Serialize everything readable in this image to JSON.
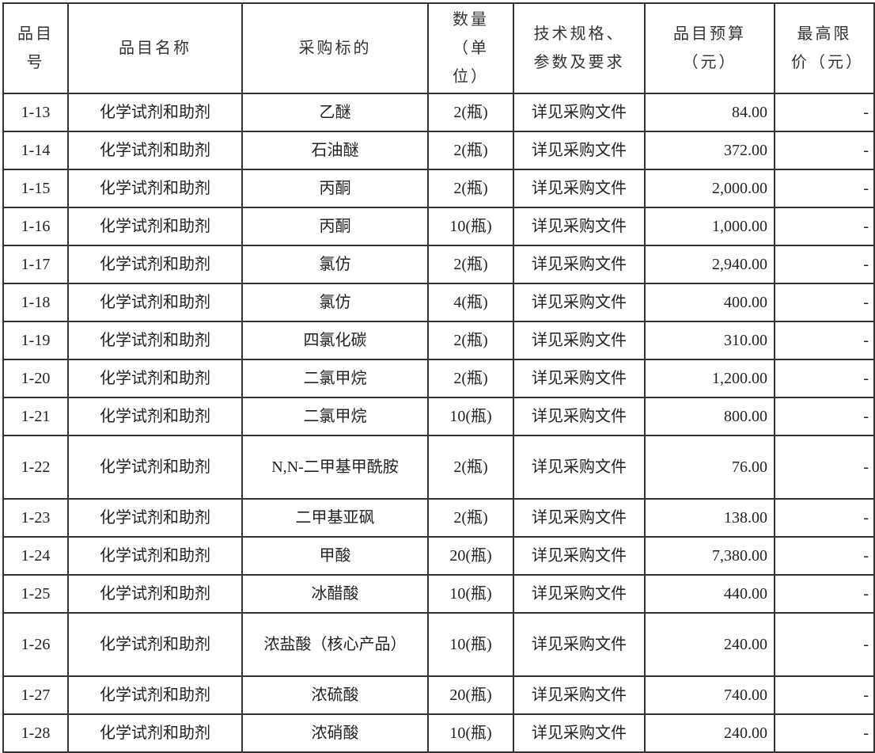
{
  "headers": [
    "品目号",
    "品目名称",
    "采购标的",
    "数量（单位）",
    "技术规格、参数及要求",
    "品目预算（元）",
    "最高限价（元）"
  ],
  "rows": [
    [
      "1-13",
      "化学试剂和助剂",
      "乙醚",
      "2(瓶)",
      "详见采购文件",
      "84.00",
      "-"
    ],
    [
      "1-14",
      "化学试剂和助剂",
      "石油醚",
      "2(瓶)",
      "详见采购文件",
      "372.00",
      "-"
    ],
    [
      "1-15",
      "化学试剂和助剂",
      "丙酮",
      "2(瓶)",
      "详见采购文件",
      "2,000.00",
      "-"
    ],
    [
      "1-16",
      "化学试剂和助剂",
      "丙酮",
      "10(瓶)",
      "详见采购文件",
      "1,000.00",
      "-"
    ],
    [
      "1-17",
      "化学试剂和助剂",
      "氯仿",
      "2(瓶)",
      "详见采购文件",
      "2,940.00",
      "-"
    ],
    [
      "1-18",
      "化学试剂和助剂",
      "氯仿",
      "4(瓶)",
      "详见采购文件",
      "400.00",
      "-"
    ],
    [
      "1-19",
      "化学试剂和助剂",
      "四氯化碳",
      "2(瓶)",
      "详见采购文件",
      "310.00",
      "-"
    ],
    [
      "1-20",
      "化学试剂和助剂",
      "二氯甲烷",
      "2(瓶)",
      "详见采购文件",
      "1,200.00",
      "-"
    ],
    [
      "1-21",
      "化学试剂和助剂",
      "二氯甲烷",
      "10(瓶)",
      "详见采购文件",
      "800.00",
      "-"
    ],
    [
      "1-22",
      "化学试剂和助剂",
      "N,N-二甲基甲酰胺",
      "2(瓶)",
      "详见采购文件",
      "76.00",
      "-"
    ],
    [
      "1-23",
      "化学试剂和助剂",
      "二甲基亚砜",
      "2(瓶)",
      "详见采购文件",
      "138.00",
      "-"
    ],
    [
      "1-24",
      "化学试剂和助剂",
      "甲酸",
      "20(瓶)",
      "详见采购文件",
      "7,380.00",
      "-"
    ],
    [
      "1-25",
      "化学试剂和助剂",
      "冰醋酸",
      "10(瓶)",
      "详见采购文件",
      "440.00",
      "-"
    ],
    [
      "1-26",
      "化学试剂和助剂",
      "浓盐酸（核心产品）",
      "10(瓶)",
      "详见采购文件",
      "240.00",
      "-"
    ],
    [
      "1-27",
      "化学试剂和助剂",
      "浓硫酸",
      "20(瓶)",
      "详见采购文件",
      "740.00",
      "-"
    ],
    [
      "1-28",
      "化学试剂和助剂",
      "浓硝酸",
      "10(瓶)",
      "详见采购文件",
      "240.00",
      "-"
    ]
  ]
}
